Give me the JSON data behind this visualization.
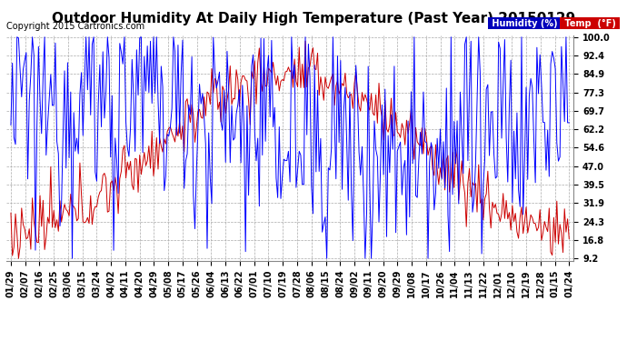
{
  "title": "Outdoor Humidity At Daily High Temperature (Past Year) 20150129",
  "copyright": "Copyright 2015 Cartronics.com",
  "yticks": [
    9.2,
    16.8,
    24.3,
    31.9,
    39.5,
    47.0,
    54.6,
    62.2,
    69.7,
    77.3,
    84.9,
    92.4,
    100.0
  ],
  "ymin": 9.2,
  "ymax": 100.0,
  "legend_humidity_label": "Humidity (%)",
  "legend_temp_label": "Temp  (°F)",
  "legend_humidity_bg": "#0000bb",
  "legend_temp_bg": "#cc0000",
  "bg_color": "#ffffff",
  "plot_bg_color": "#ffffff",
  "grid_color": "#aaaaaa",
  "humidity_color": "#0000ff",
  "temp_color": "#cc0000",
  "title_fontsize": 11,
  "copyright_fontsize": 7,
  "tick_fontsize": 7,
  "xtick_labels": [
    "01/29",
    "02/07",
    "02/16",
    "02/25",
    "03/06",
    "03/15",
    "03/24",
    "04/02",
    "04/11",
    "04/20",
    "04/29",
    "05/08",
    "05/17",
    "05/26",
    "06/04",
    "06/13",
    "06/22",
    "07/01",
    "07/10",
    "07/19",
    "07/28",
    "08/06",
    "08/15",
    "08/24",
    "09/02",
    "09/11",
    "09/20",
    "09/29",
    "10/08",
    "10/17",
    "10/26",
    "11/04",
    "11/13",
    "11/22",
    "12/01",
    "12/10",
    "12/19",
    "12/28",
    "01/15",
    "01/24"
  ]
}
